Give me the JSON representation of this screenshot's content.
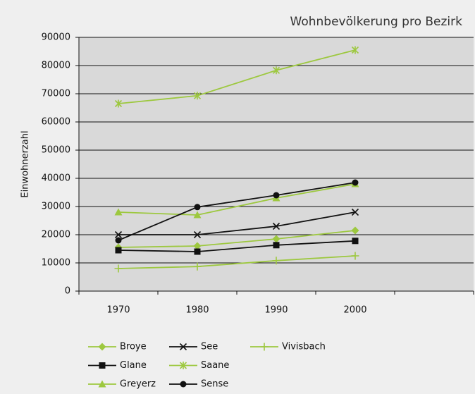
{
  "chart_data": {
    "type": "line",
    "title": "Wohnbevölkerung pro Bezirk",
    "y_label": "Einwohnerzahl",
    "categories": [
      "1970",
      "1980",
      "1990",
      "2000",
      null
    ],
    "series": [
      {
        "name": "Broye",
        "color": "#9dc83f",
        "marker": "diamond",
        "values": [
          15500,
          16000,
          18500,
          21500,
          null
        ]
      },
      {
        "name": "Glane",
        "color": "#111111",
        "marker": "square",
        "values": [
          14500,
          14000,
          16300,
          17800,
          null
        ]
      },
      {
        "name": "Greyerz",
        "color": "#9dc83f",
        "marker": "triangle",
        "values": [
          28000,
          27000,
          33000,
          38000,
          null
        ]
      },
      {
        "name": "See",
        "color": "#111111",
        "marker": "x",
        "values": [
          20000,
          20000,
          23000,
          28000,
          null
        ]
      },
      {
        "name": "Saane",
        "color": "#9dc83f",
        "marker": "star",
        "values": [
          66500,
          69300,
          78300,
          85500,
          null
        ]
      },
      {
        "name": "Sense",
        "color": "#111111",
        "marker": "circle",
        "values": [
          18000,
          29800,
          34000,
          38500,
          null
        ]
      },
      {
        "name": "Vivisbach",
        "color": "#9dc83f",
        "marker": "plus",
        "values": [
          8000,
          8700,
          10800,
          12500,
          null
        ]
      }
    ],
    "ylim": [
      0,
      90000
    ],
    "yticks": [
      0,
      10000,
      20000,
      30000,
      40000,
      50000,
      60000,
      70000,
      80000,
      90000
    ],
    "grid": true
  }
}
